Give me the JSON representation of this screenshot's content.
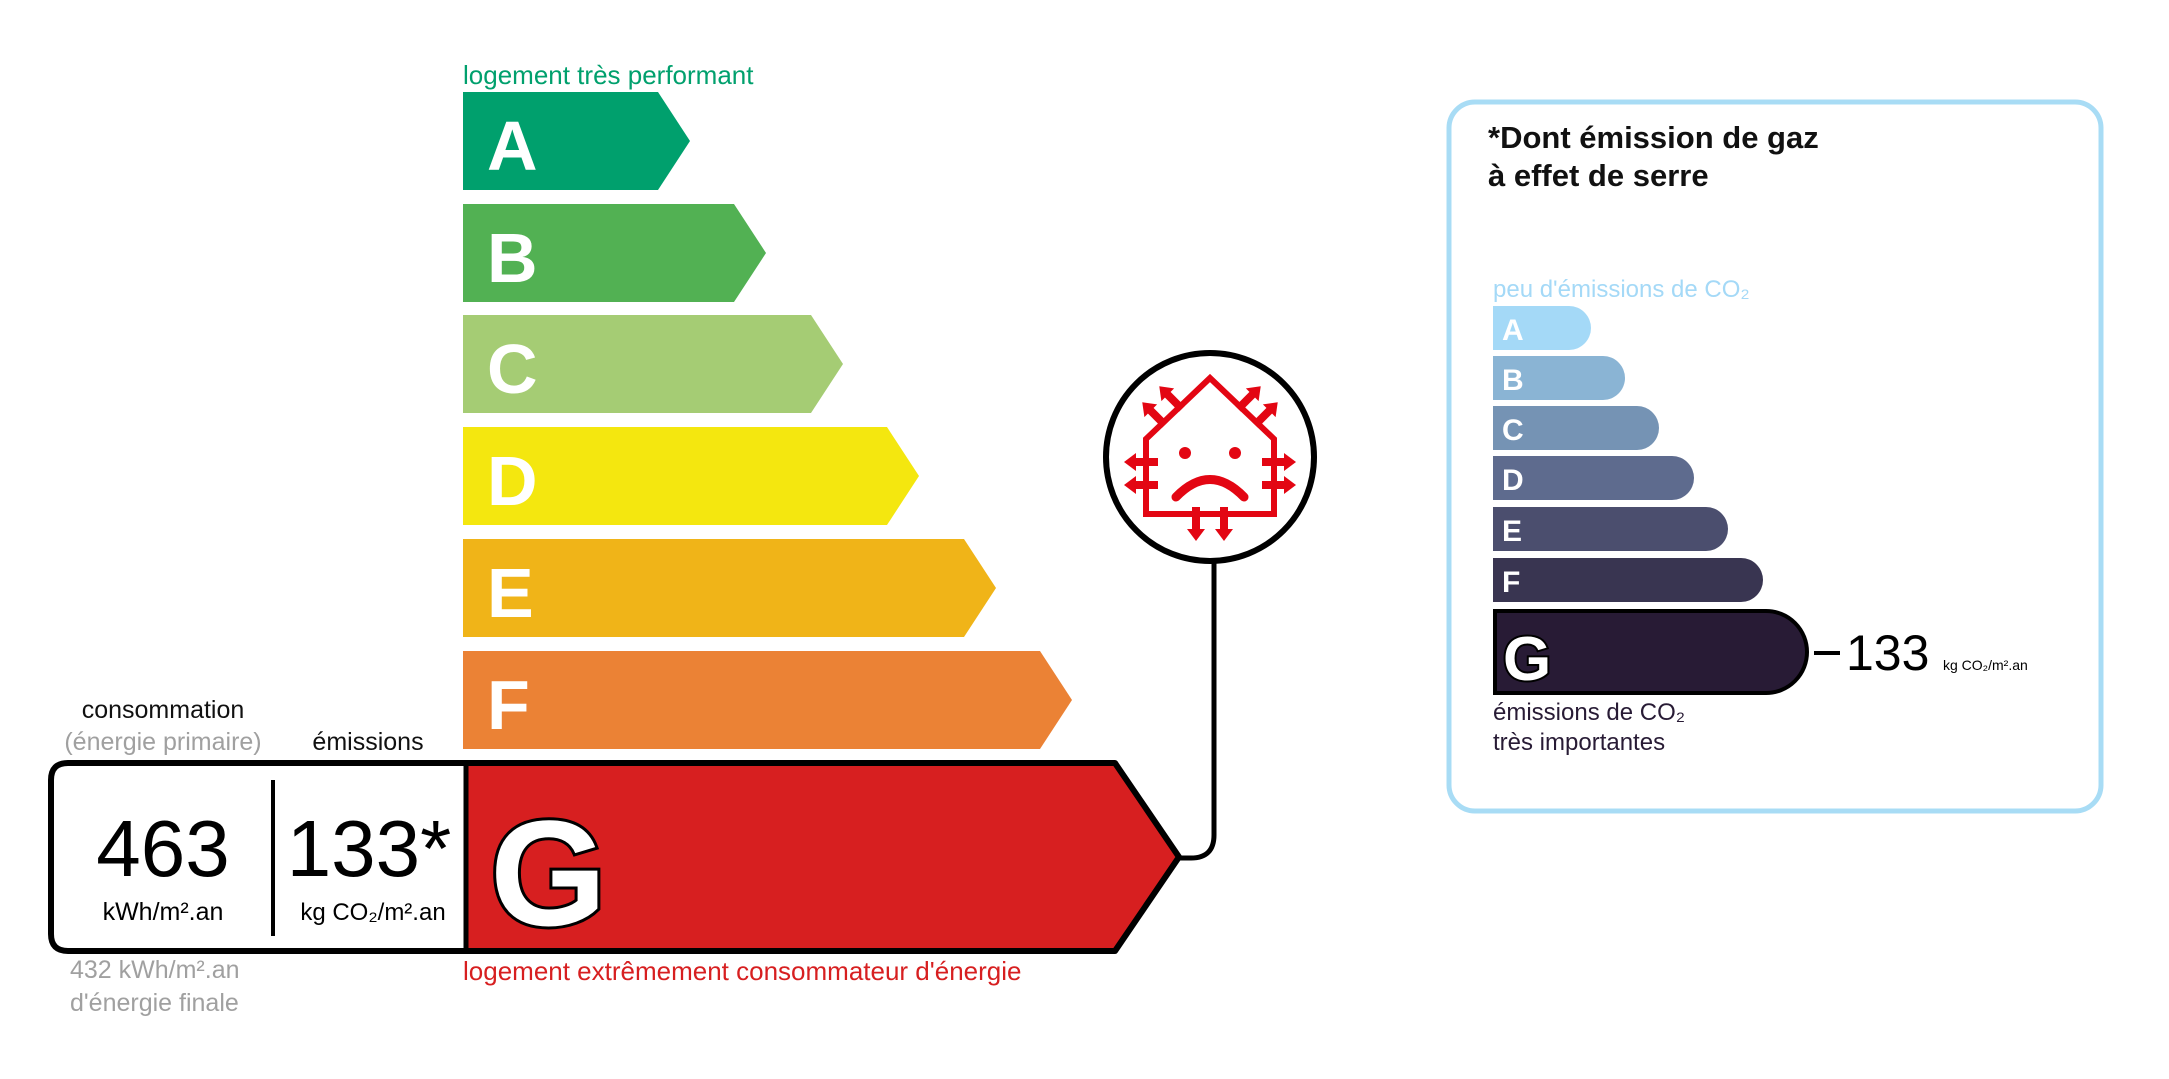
{
  "energy_label": {
    "top_caption": "logement très performant",
    "bottom_caption": "logement extrêmement consommateur d'énergie",
    "classes": [
      {
        "letter": "A",
        "color": "#00a06d"
      },
      {
        "letter": "B",
        "color": "#52b153"
      },
      {
        "letter": "C",
        "color": "#a5cc74"
      },
      {
        "letter": "D",
        "color": "#f4e70f"
      },
      {
        "letter": "E",
        "color": "#f0b418"
      },
      {
        "letter": "F",
        "color": "#eb8235"
      },
      {
        "letter": "G",
        "color": "#d71f20"
      }
    ],
    "current_class": "G",
    "consumption_label": "consommation",
    "consumption_sublabel": "(énergie primaire)",
    "emissions_label": "émissions",
    "consumption_value": "463",
    "consumption_unit": "kWh/m².an",
    "emissions_value": "133*",
    "emissions_unit": "kg CO₂/m².an",
    "final_energy_value": "432 kWh/m².an",
    "final_energy_label": "d'énergie finale",
    "icon": "house-heat-loss-sad-face-icon"
  },
  "ghg_label": {
    "title_line1": "*Dont émission de gaz",
    "title_line2": "à effet de serre",
    "top_caption": "peu d'émissions de CO₂",
    "bottom_caption_line1": "émissions de CO₂",
    "bottom_caption_line2": "très importantes",
    "classes": [
      {
        "letter": "A",
        "color": "#a4d9f7"
      },
      {
        "letter": "B",
        "color": "#8ab4d4"
      },
      {
        "letter": "C",
        "color": "#7593b4"
      },
      {
        "letter": "D",
        "color": "#5e6b8e"
      },
      {
        "letter": "E",
        "color": "#4b4e6e"
      },
      {
        "letter": "F",
        "color": "#393551"
      },
      {
        "letter": "G",
        "color": "#281b35"
      }
    ],
    "current_class": "G",
    "value": "133",
    "unit": "kg CO₂/m².an",
    "border_color": "#a8dcf5"
  }
}
